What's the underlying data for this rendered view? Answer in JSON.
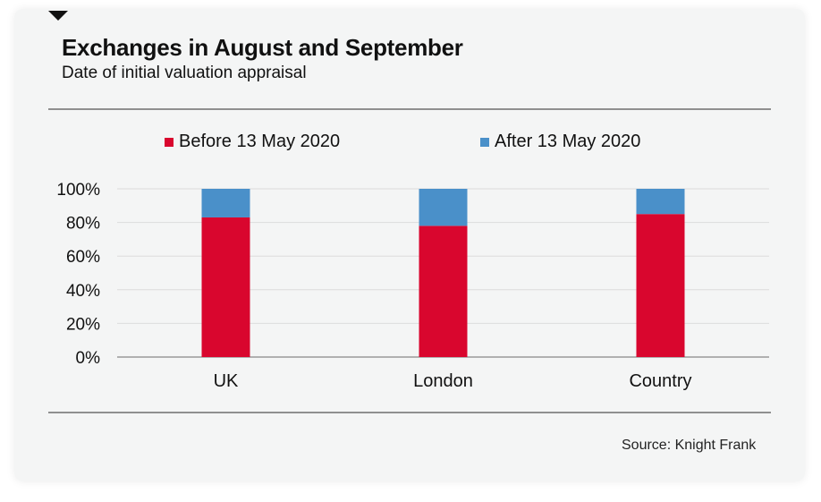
{
  "chart_data": {
    "type": "bar",
    "stacked": true,
    "title": "Exchanges in August and September",
    "subtitle": "Date of initial valuation appraisal",
    "categories": [
      "UK",
      "London",
      "Country"
    ],
    "series": [
      {
        "name": "Before 13 May 2020",
        "color": "#d9062e",
        "values": [
          83,
          78,
          85
        ]
      },
      {
        "name": "After 13 May 2020",
        "color": "#4a90c9",
        "values": [
          17,
          22,
          15
        ]
      }
    ],
    "ylim": [
      0,
      100
    ],
    "yticks": [
      "0%",
      "20%",
      "40%",
      "60%",
      "80%",
      "100%"
    ],
    "ytick_values": [
      0,
      20,
      40,
      60,
      80,
      100
    ],
    "grid": true,
    "legend_position": "top",
    "source": "Source: Knight Frank"
  }
}
